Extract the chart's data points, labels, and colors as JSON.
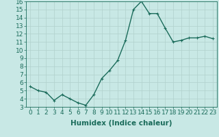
{
  "x": [
    0,
    1,
    2,
    3,
    4,
    5,
    6,
    7,
    8,
    9,
    10,
    11,
    12,
    13,
    14,
    15,
    16,
    17,
    18,
    19,
    20,
    21,
    22,
    23
  ],
  "y": [
    5.5,
    5.0,
    4.8,
    3.8,
    4.5,
    4.0,
    3.5,
    3.2,
    4.5,
    6.5,
    7.5,
    8.7,
    11.2,
    15.0,
    16.0,
    14.5,
    14.5,
    12.7,
    11.0,
    11.2,
    11.5,
    11.5,
    11.7,
    11.4
  ],
  "line_color": "#1a6b5a",
  "bg_color": "#c8e8e5",
  "grid_color": "#b0d0cc",
  "xlabel": "Humidex (Indice chaleur)",
  "ylim": [
    3,
    16
  ],
  "xlim_min": -0.5,
  "xlim_max": 23.5,
  "yticks": [
    3,
    4,
    5,
    6,
    7,
    8,
    9,
    10,
    11,
    12,
    13,
    14,
    15,
    16
  ],
  "xticks": [
    0,
    1,
    2,
    3,
    4,
    5,
    6,
    7,
    8,
    9,
    10,
    11,
    12,
    13,
    14,
    15,
    16,
    17,
    18,
    19,
    20,
    21,
    22,
    23
  ],
  "tick_label_fontsize": 6.5,
  "xlabel_fontsize": 7.5,
  "marker_size": 2.5,
  "line_width": 1.0
}
